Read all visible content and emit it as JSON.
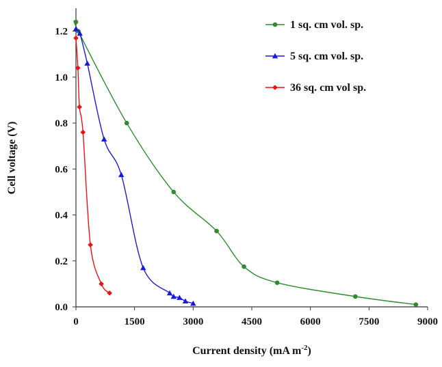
{
  "chart_data": {
    "type": "line",
    "xlabel": "Current density (mA m",
    "xlabel_sup": "-2",
    "xlabel_close": ")",
    "ylabel": "Cell voltage (V)",
    "xlim": [
      0,
      9000
    ],
    "ylim": [
      0,
      1.3
    ],
    "xticks": [
      "0",
      "1500",
      "3000",
      "4500",
      "6000",
      "7500",
      "9000"
    ],
    "yticks": [
      "0.0",
      "0.2",
      "0.4",
      "0.6",
      "0.8",
      "1.0",
      "1.2"
    ],
    "grid": false,
    "legend_position": "top-right",
    "series": [
      {
        "name": "1 sq. cm vol. sp.",
        "color": "#2e8b2e",
        "marker": "circle",
        "points": [
          [
            0,
            1.24
          ],
          [
            60,
            1.2
          ],
          [
            1300,
            0.8
          ],
          [
            2500,
            0.5
          ],
          [
            3600,
            0.33
          ],
          [
            4300,
            0.175
          ],
          [
            5150,
            0.105
          ],
          [
            7150,
            0.045
          ],
          [
            8700,
            0.01
          ]
        ]
      },
      {
        "name": "5 sq. cm vol. sp.",
        "color": "#1a1adb",
        "marker": "triangle",
        "points": [
          [
            0,
            1.21
          ],
          [
            100,
            1.19
          ],
          [
            290,
            1.06
          ],
          [
            720,
            0.73
          ],
          [
            1160,
            0.575
          ],
          [
            1720,
            0.17
          ],
          [
            2400,
            0.06
          ],
          [
            2500,
            0.045
          ],
          [
            2650,
            0.04
          ],
          [
            2800,
            0.025
          ],
          [
            3000,
            0.015
          ]
        ]
      },
      {
        "name": "36 sq. cm vol sp.",
        "color": "#ee1111",
        "marker": "diamond",
        "points": [
          [
            0,
            1.17
          ],
          [
            50,
            1.04
          ],
          [
            90,
            0.87
          ],
          [
            180,
            0.76
          ],
          [
            370,
            0.27
          ],
          [
            650,
            0.1
          ],
          [
            860,
            0.06
          ]
        ]
      }
    ]
  }
}
